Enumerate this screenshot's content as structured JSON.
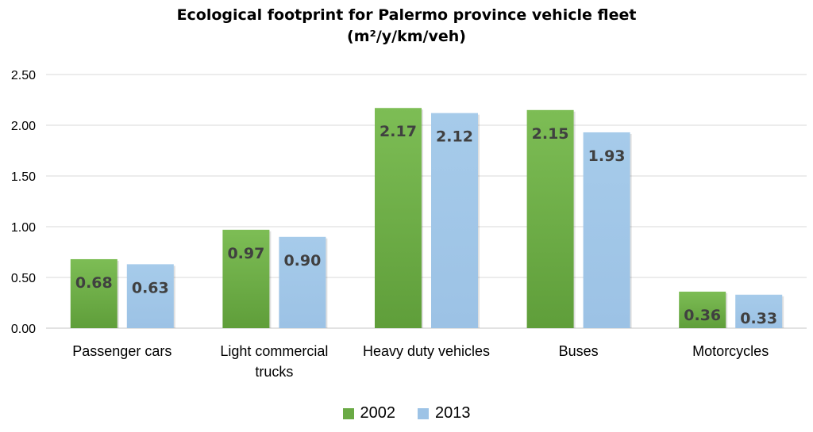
{
  "chart_data": {
    "type": "bar",
    "title": "Ecological footprint for Palermo province vehicle fleet",
    "subtitle": "(m²/y/km/veh)",
    "categories": [
      [
        "Passenger cars"
      ],
      [
        "Light commercial",
        "trucks"
      ],
      [
        "Heavy duty vehicles"
      ],
      [
        "Buses"
      ],
      [
        "Motorcycles"
      ]
    ],
    "series": [
      {
        "name": "2002",
        "values": [
          0.68,
          0.97,
          2.17,
          2.15,
          0.36
        ],
        "value_labels": [
          "0.68",
          "0.97",
          "2.17",
          "2.15",
          "0.36"
        ],
        "color": "#6aaa45"
      },
      {
        "name": "2013",
        "values": [
          0.63,
          0.9,
          2.12,
          1.93,
          0.33
        ],
        "value_labels": [
          "0.63",
          "0.90",
          "2.12",
          "1.93",
          "0.33"
        ],
        "color": "#9dc3e6"
      }
    ],
    "ylim": [
      0,
      2.5
    ],
    "yticks": [
      "0.00",
      "0.50",
      "1.00",
      "1.50",
      "2.00",
      "2.50"
    ],
    "xlabel": "",
    "ylabel": "",
    "grid": true,
    "legend": "bottom"
  }
}
